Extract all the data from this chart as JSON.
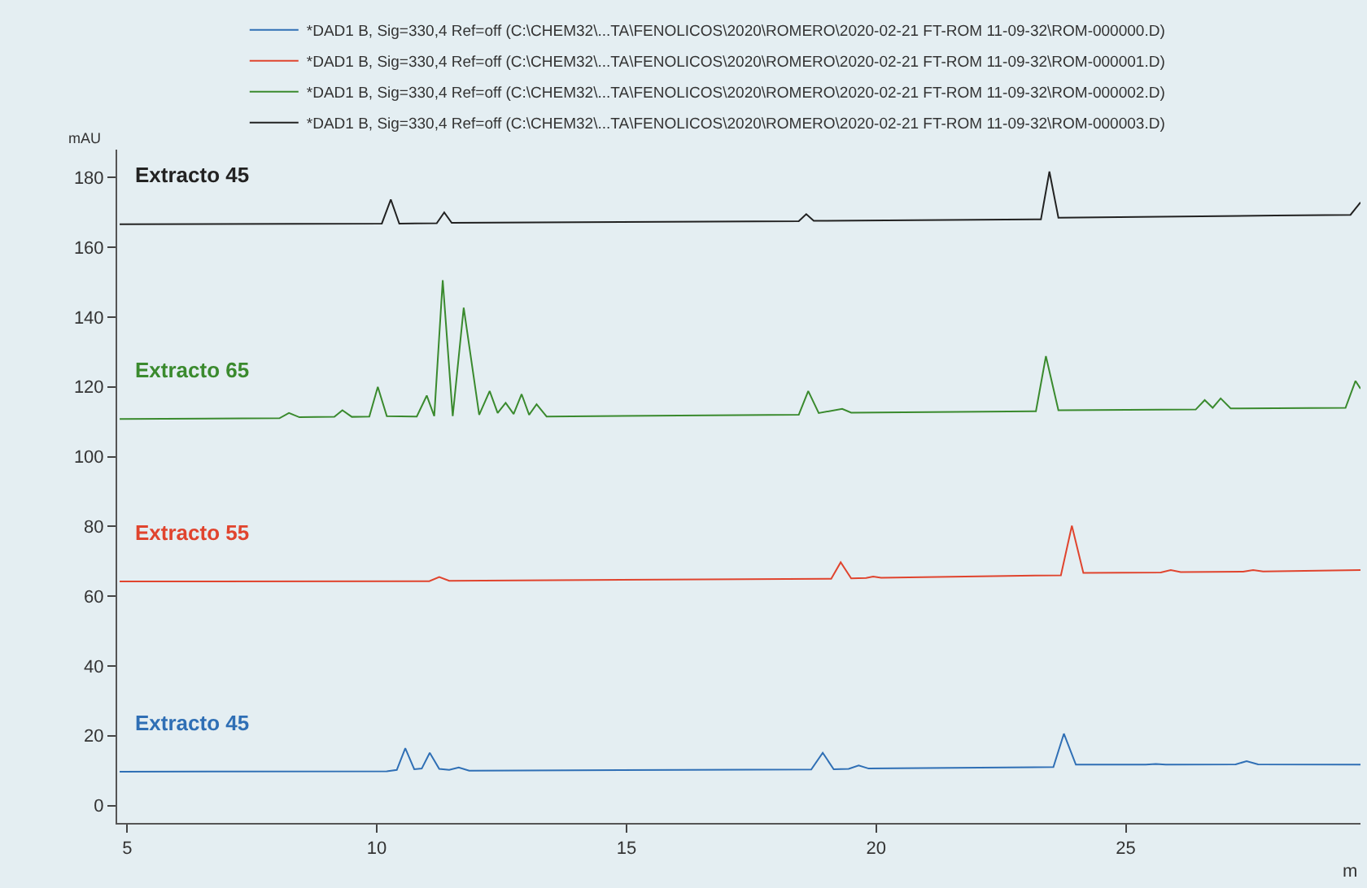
{
  "chart_data": {
    "type": "line",
    "xlabel": "m",
    "ylabel": "mAU",
    "xlim": [
      4.8,
      29.7
    ],
    "ylim": [
      -5,
      188
    ],
    "xticks": [
      5,
      10,
      15,
      20,
      25
    ],
    "yticks": [
      0,
      20,
      40,
      60,
      80,
      100,
      120,
      140,
      160,
      180
    ],
    "grid": false,
    "legend": "top",
    "marker": "none",
    "line_style": "solid",
    "series": [
      {
        "name": "*DAD1 B, Sig=330,4 Ref=off (C:\\CHEM32\\...TA\\FENOLICOS\\2020\\ROMERO\\2020-02-21 FT-ROM 11-09-32\\ROM-000000.D)",
        "color": "#2f6fb5",
        "x": [
          4.85,
          10.2,
          10.4,
          10.57,
          10.75,
          10.9,
          11.06,
          11.25,
          11.45,
          11.64,
          11.85,
          18.7,
          18.93,
          19.15,
          19.45,
          19.65,
          19.85,
          23.55,
          23.76,
          24.0,
          25.4,
          25.6,
          25.8,
          27.2,
          27.42,
          27.65,
          29.7
        ],
        "values": [
          9.7,
          9.8,
          10.2,
          16.4,
          10.4,
          10.6,
          15.1,
          10.5,
          10.2,
          10.9,
          10.0,
          10.3,
          15.1,
          10.4,
          10.5,
          11.5,
          10.6,
          11.0,
          20.6,
          11.7,
          11.7,
          11.9,
          11.7,
          11.8,
          12.7,
          11.8,
          11.7
        ]
      },
      {
        "name": "*DAD1 B, Sig=330,4 Ref=off (C:\\CHEM32\\...TA\\FENOLICOS\\2020\\ROMERO\\2020-02-21 FT-ROM 11-09-32\\ROM-000001.D)",
        "color": "#e0442e",
        "x": [
          4.85,
          11.05,
          11.25,
          11.45,
          19.1,
          19.29,
          19.5,
          19.8,
          19.94,
          20.1,
          23.7,
          23.92,
          24.15,
          25.7,
          25.9,
          26.1,
          27.35,
          27.55,
          27.75,
          29.7
        ],
        "values": [
          64.2,
          64.3,
          65.5,
          64.4,
          65.0,
          69.7,
          65.1,
          65.2,
          65.6,
          65.3,
          66.0,
          80.2,
          66.7,
          66.8,
          67.5,
          66.9,
          67.0,
          67.5,
          67.1,
          67.5
        ]
      },
      {
        "name": "*DAD1 B, Sig=330,4 Ref=off (C:\\CHEM32\\...TA\\FENOLICOS\\2020\\ROMERO\\2020-02-21 FT-ROM 11-09-32\\ROM-000002.D)",
        "color": "#3a8a2e",
        "x": [
          4.85,
          8.05,
          8.24,
          8.45,
          9.15,
          9.31,
          9.5,
          9.85,
          10.02,
          10.2,
          10.8,
          11.0,
          11.15,
          11.32,
          11.52,
          11.74,
          12.05,
          12.26,
          12.42,
          12.58,
          12.74,
          12.9,
          13.05,
          13.2,
          13.4,
          18.45,
          18.64,
          18.85,
          19.32,
          19.5,
          23.2,
          23.4,
          23.65,
          26.4,
          26.58,
          26.74,
          26.9,
          27.1,
          29.4,
          29.6,
          29.7
        ],
        "values": [
          110.8,
          111.0,
          112.5,
          111.3,
          111.4,
          113.3,
          111.4,
          111.5,
          120.0,
          111.6,
          111.5,
          117.5,
          111.6,
          150.6,
          111.6,
          142.7,
          112.0,
          118.8,
          112.5,
          115.4,
          112.2,
          117.9,
          112.0,
          115.0,
          111.5,
          112.0,
          118.8,
          112.5,
          113.7,
          112.6,
          113.0,
          128.8,
          113.3,
          113.5,
          116.2,
          114.0,
          116.7,
          113.8,
          114.0,
          121.7,
          119.5
        ]
      },
      {
        "name": "*DAD1 B, Sig=330,4 Ref=off (C:\\CHEM32\\...TA\\FENOLICOS\\2020\\ROMERO\\2020-02-21 FT-ROM 11-09-32\\ROM-000003.D)",
        "color": "#222222",
        "x": [
          4.85,
          10.1,
          10.28,
          10.45,
          11.2,
          11.35,
          11.5,
          18.45,
          18.6,
          18.75,
          23.3,
          23.47,
          23.65,
          28.0,
          29.5,
          29.7
        ],
        "values": [
          166.6,
          166.8,
          173.7,
          166.8,
          166.9,
          170.0,
          167.0,
          167.5,
          169.5,
          167.6,
          168.0,
          181.7,
          168.5,
          169.1,
          169.3,
          172.9
        ]
      }
    ],
    "annotations": [
      "Extracto 45",
      "Extracto 65",
      "Extracto 55",
      "Extracto 45"
    ]
  }
}
